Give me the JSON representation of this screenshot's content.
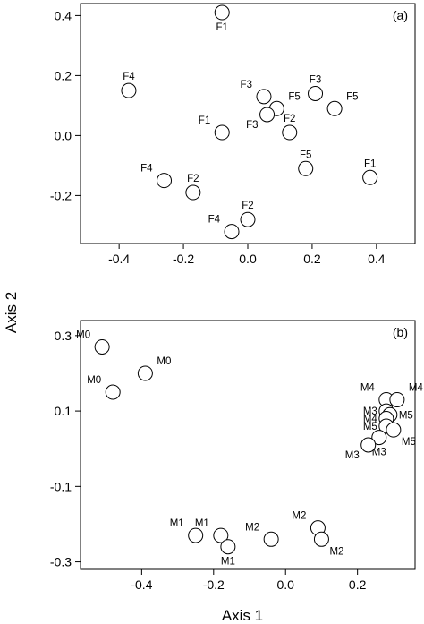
{
  "figure": {
    "y_axis_title": "Axis 2",
    "x_axis_title": "Axis 1"
  },
  "chart_data": [
    {
      "type": "scatter",
      "panel_label": "(a)",
      "xlabel": "",
      "ylabel": "",
      "xlim": [
        -0.52,
        0.52
      ],
      "ylim": [
        -0.36,
        0.44
      ],
      "grid": false,
      "x_ticks": [
        -0.4,
        -0.2,
        0.0,
        0.2,
        0.4
      ],
      "x_tick_labels": [
        "-0.4",
        "-0.2",
        "0.0",
        "0.2",
        "0.4"
      ],
      "y_ticks": [
        -0.2,
        0.0,
        0.2,
        0.4
      ],
      "y_tick_labels": [
        "-0.2",
        "0.0",
        "0.2",
        "0.4"
      ],
      "points": [
        {
          "label": "F1",
          "x": -0.08,
          "y": 0.41,
          "pos": "below"
        },
        {
          "label": "F4",
          "x": -0.37,
          "y": 0.15,
          "pos": "above"
        },
        {
          "label": "F3",
          "x": 0.05,
          "y": 0.13,
          "pos": "upper-left"
        },
        {
          "label": "F5",
          "x": 0.09,
          "y": 0.09,
          "pos": "upper-right"
        },
        {
          "label": "F3",
          "x": 0.06,
          "y": 0.07,
          "pos": "lower-left"
        },
        {
          "label": "F3",
          "x": 0.21,
          "y": 0.14,
          "pos": "above"
        },
        {
          "label": "F5",
          "x": 0.27,
          "y": 0.09,
          "pos": "upper-right"
        },
        {
          "label": "F1",
          "x": -0.08,
          "y": 0.01,
          "pos": "upper-left"
        },
        {
          "label": "F2",
          "x": 0.13,
          "y": 0.01,
          "pos": "above"
        },
        {
          "label": "F4",
          "x": -0.26,
          "y": -0.15,
          "pos": "upper-left"
        },
        {
          "label": "F2",
          "x": -0.17,
          "y": -0.19,
          "pos": "above"
        },
        {
          "label": "F5",
          "x": 0.18,
          "y": -0.11,
          "pos": "above"
        },
        {
          "label": "F1",
          "x": 0.38,
          "y": -0.14,
          "pos": "above"
        },
        {
          "label": "F2",
          "x": 0.0,
          "y": -0.28,
          "pos": "above"
        },
        {
          "label": "F4",
          "x": -0.05,
          "y": -0.32,
          "pos": "upper-left"
        }
      ]
    },
    {
      "type": "scatter",
      "panel_label": "(b)",
      "xlabel": "",
      "ylabel": "",
      "xlim": [
        -0.57,
        0.36
      ],
      "ylim": [
        -0.32,
        0.34
      ],
      "grid": false,
      "x_ticks": [
        -0.4,
        -0.2,
        0.0,
        0.2
      ],
      "x_tick_labels": [
        "-0.4",
        "-0.2",
        "0.0",
        "0.2"
      ],
      "y_ticks": [
        -0.3,
        -0.1,
        0.1,
        0.3
      ],
      "y_tick_labels": [
        "-0.3",
        "-0.1",
        "0.1",
        "0.3"
      ],
      "points": [
        {
          "label": "M0",
          "x": -0.51,
          "y": 0.27,
          "pos": "upper-left"
        },
        {
          "label": "M0",
          "x": -0.39,
          "y": 0.2,
          "pos": "upper-right"
        },
        {
          "label": "M0",
          "x": -0.48,
          "y": 0.15,
          "pos": "upper-left"
        },
        {
          "label": "M1",
          "x": -0.25,
          "y": -0.23,
          "pos": "upper-left"
        },
        {
          "label": "M1",
          "x": -0.18,
          "y": -0.23,
          "pos": "upper-left"
        },
        {
          "label": "M1",
          "x": -0.16,
          "y": -0.26,
          "pos": "below"
        },
        {
          "label": "M2",
          "x": -0.04,
          "y": -0.24,
          "pos": "upper-left"
        },
        {
          "label": "M2",
          "x": 0.09,
          "y": -0.21,
          "pos": "upper-left"
        },
        {
          "label": "M2",
          "x": 0.1,
          "y": -0.24,
          "pos": "lower-right"
        },
        {
          "label": "M4",
          "x": 0.28,
          "y": 0.13,
          "pos": "upper-left"
        },
        {
          "label": "M4",
          "x": 0.31,
          "y": 0.13,
          "pos": "upper-right"
        },
        {
          "label": "M3",
          "x": 0.28,
          "y": 0.1,
          "pos": "left"
        },
        {
          "label": "M5",
          "x": 0.29,
          "y": 0.09,
          "pos": "right"
        },
        {
          "label": "M4",
          "x": 0.28,
          "y": 0.08,
          "pos": "left"
        },
        {
          "label": "M5",
          "x": 0.28,
          "y": 0.06,
          "pos": "left"
        },
        {
          "label": "M5",
          "x": 0.3,
          "y": 0.05,
          "pos": "lower-right"
        },
        {
          "label": "M3",
          "x": 0.26,
          "y": 0.03,
          "pos": "below"
        },
        {
          "label": "M3",
          "x": 0.23,
          "y": 0.01,
          "pos": "lower-left"
        }
      ]
    }
  ]
}
